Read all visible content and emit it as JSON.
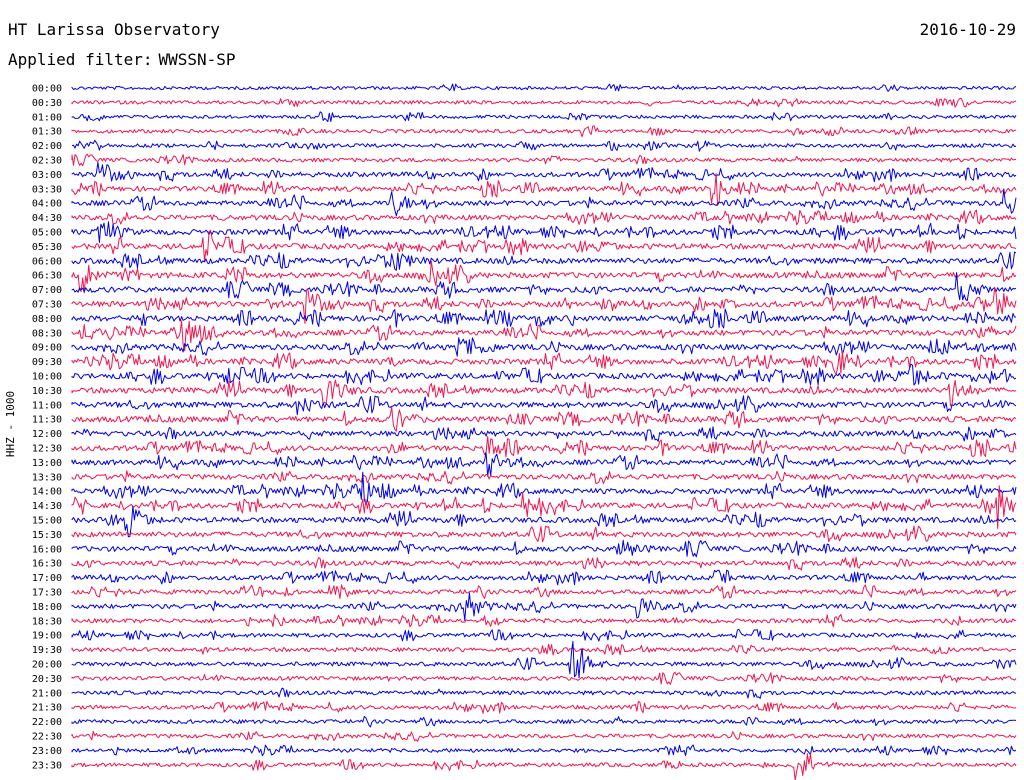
{
  "header": {
    "station_title": "HT Larissa Observatory",
    "date": "2016-10-29",
    "filter_label": "Applied filter:",
    "filter_value": "WWSSN-SP"
  },
  "chart_data": {
    "type": "line",
    "ylabel": "HHZ - 1000",
    "colors": [
      "#0000e6",
      "#f0164f"
    ],
    "rows": [
      {
        "label": "00:00",
        "activity": 0.25
      },
      {
        "label": "00:30",
        "activity": 0.35
      },
      {
        "label": "01:00",
        "activity": 0.3
      },
      {
        "label": "01:30",
        "activity": 0.4
      },
      {
        "label": "02:00",
        "activity": 0.4
      },
      {
        "label": "02:30",
        "activity": 0.45
      },
      {
        "label": "03:00",
        "activity": 0.7
      },
      {
        "label": "03:30",
        "activity": 0.8
      },
      {
        "label": "04:00",
        "activity": 0.85
      },
      {
        "label": "04:30",
        "activity": 0.8
      },
      {
        "label": "05:00",
        "activity": 0.95
      },
      {
        "label": "05:30",
        "activity": 0.95
      },
      {
        "label": "06:00",
        "activity": 1.0
      },
      {
        "label": "06:30",
        "activity": 1.0
      },
      {
        "label": "07:00",
        "activity": 0.95
      },
      {
        "label": "07:30",
        "activity": 1.0
      },
      {
        "label": "08:00",
        "activity": 1.0
      },
      {
        "label": "08:30",
        "activity": 0.95
      },
      {
        "label": "09:00",
        "activity": 1.0
      },
      {
        "label": "09:30",
        "activity": 1.0
      },
      {
        "label": "10:00",
        "activity": 1.0
      },
      {
        "label": "10:30",
        "activity": 1.0
      },
      {
        "label": "11:00",
        "activity": 1.0
      },
      {
        "label": "11:30",
        "activity": 1.0
      },
      {
        "label": "12:00",
        "activity": 0.9
      },
      {
        "label": "12:30",
        "activity": 0.85
      },
      {
        "label": "13:00",
        "activity": 0.85
      },
      {
        "label": "13:30",
        "activity": 0.85
      },
      {
        "label": "14:00",
        "activity": 0.9
      },
      {
        "label": "14:30",
        "activity": 0.9
      },
      {
        "label": "15:00",
        "activity": 0.9
      },
      {
        "label": "15:30",
        "activity": 0.9
      },
      {
        "label": "16:00",
        "activity": 0.85
      },
      {
        "label": "16:30",
        "activity": 0.75
      },
      {
        "label": "17:00",
        "activity": 0.7
      },
      {
        "label": "17:30",
        "activity": 0.65
      },
      {
        "label": "18:00",
        "activity": 0.65
      },
      {
        "label": "18:30",
        "activity": 0.6
      },
      {
        "label": "19:00",
        "activity": 0.5
      },
      {
        "label": "19:30",
        "activity": 0.5
      },
      {
        "label": "20:00",
        "activity": 0.55
      },
      {
        "label": "20:30",
        "activity": 0.5
      },
      {
        "label": "21:00",
        "activity": 0.5
      },
      {
        "label": "21:30",
        "activity": 0.5
      },
      {
        "label": "22:00",
        "activity": 0.45
      },
      {
        "label": "22:30",
        "activity": 0.45
      },
      {
        "label": "23:00",
        "activity": 0.45
      },
      {
        "label": "23:30",
        "activity": 0.45
      }
    ],
    "events": [
      {
        "row": "03:00",
        "t": 0.03,
        "amp": 1.6
      },
      {
        "row": "03:30",
        "t": 0.68,
        "amp": 2.2
      },
      {
        "row": "04:00",
        "t": 0.34,
        "amp": 1.4
      },
      {
        "row": "04:00",
        "t": 0.99,
        "amp": 1.6
      },
      {
        "row": "05:00",
        "t": 0.03,
        "amp": 1.8
      },
      {
        "row": "05:30",
        "t": 0.14,
        "amp": 1.4
      },
      {
        "row": "06:00",
        "t": 0.34,
        "amp": 1.3
      },
      {
        "row": "06:30",
        "t": 0.01,
        "amp": 1.8
      },
      {
        "row": "06:30",
        "t": 0.38,
        "amp": 1.4
      },
      {
        "row": "07:00",
        "t": 0.94,
        "amp": 1.5
      },
      {
        "row": "07:30",
        "t": 0.25,
        "amp": 1.9
      },
      {
        "row": "07:30",
        "t": 0.98,
        "amp": 1.6
      },
      {
        "row": "08:30",
        "t": 0.12,
        "amp": 1.3
      },
      {
        "row": "09:30",
        "t": 0.81,
        "amp": 1.5
      },
      {
        "row": "10:00",
        "t": 0.89,
        "amp": 1.4
      },
      {
        "row": "10:30",
        "t": 0.27,
        "amp": 1.8
      },
      {
        "row": "10:30",
        "t": 0.93,
        "amp": 1.6
      },
      {
        "row": "11:00",
        "t": 0.24,
        "amp": 1.3
      },
      {
        "row": "11:30",
        "t": 0.34,
        "amp": 1.3
      },
      {
        "row": "12:30",
        "t": 0.44,
        "amp": 1.4
      },
      {
        "row": "13:00",
        "t": 0.44,
        "amp": 1.5
      },
      {
        "row": "14:00",
        "t": 0.31,
        "amp": 1.5
      },
      {
        "row": "14:30",
        "t": 0.48,
        "amp": 1.6
      },
      {
        "row": "14:30",
        "t": 0.98,
        "amp": 1.6
      },
      {
        "row": "15:00",
        "t": 0.06,
        "amp": 1.4
      },
      {
        "row": "16:00",
        "t": 0.58,
        "amp": 1.4
      },
      {
        "row": "18:00",
        "t": 0.42,
        "amp": 1.3
      },
      {
        "row": "18:00",
        "t": 0.6,
        "amp": 1.3
      },
      {
        "row": "20:00",
        "t": 0.53,
        "amp": 2.4
      },
      {
        "row": "23:30",
        "t": 0.77,
        "amp": 1.7
      }
    ]
  }
}
